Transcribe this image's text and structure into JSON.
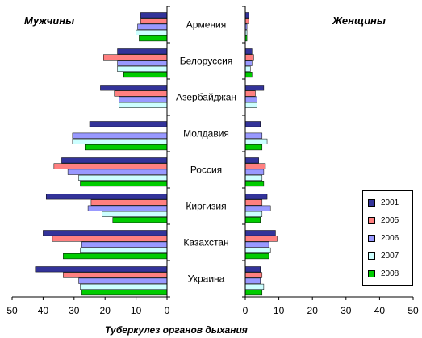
{
  "chart_data": {
    "type": "bar",
    "orientation": "horizontal",
    "xlabel": "Туберкулез органов  дыхания",
    "categories": [
      "Армения",
      "Белоруссия",
      "Азербайджан",
      "Молдавия",
      "Россия",
      "Киргизия",
      "Казахстан",
      "Украина"
    ],
    "series_names": [
      "2001",
      "2005",
      "2006",
      "2007",
      "2008"
    ],
    "colors": {
      "2001": "#333399",
      "2005": "#ff8080",
      "2006": "#9999ff",
      "2007": "#ccffff",
      "2008": "#00cc00"
    },
    "panels": [
      {
        "title": "Мужчины",
        "direction": "reversed",
        "xlim": [
          0,
          50
        ],
        "ticks": [
          "50",
          "40",
          "30",
          "20",
          "10",
          "0"
        ],
        "series": [
          {
            "name": "2001",
            "values": [
              8.5,
              16,
              21.5,
              25,
              34,
              39,
              40,
              42.5
            ]
          },
          {
            "name": "2005",
            "values": [
              8.5,
              20.5,
              17,
              null,
              36.5,
              24.5,
              37,
              33.5
            ]
          },
          {
            "name": "2006",
            "values": [
              9.5,
              16,
              15.5,
              30.5,
              32,
              25.5,
              27.5,
              28.5
            ]
          },
          {
            "name": "2007",
            "values": [
              10,
              16,
              15.5,
              30.5,
              28.5,
              21,
              28,
              28
            ]
          },
          {
            "name": "2008",
            "values": [
              9,
              14,
              null,
              26.5,
              28,
              17.5,
              33.5,
              27.5
            ]
          }
        ]
      },
      {
        "title": "Женщины",
        "direction": "normal",
        "xlim": [
          0,
          50
        ],
        "ticks": [
          "0",
          "10",
          "20",
          "30",
          "40",
          "50"
        ],
        "series": [
          {
            "name": "2001",
            "values": [
              1,
              2,
              5.5,
              4.5,
              4,
              6.5,
              9,
              4.5
            ]
          },
          {
            "name": "2005",
            "values": [
              1,
              2.5,
              3,
              null,
              6,
              5,
              9.5,
              5
            ]
          },
          {
            "name": "2006",
            "values": [
              0.5,
              2,
              3.5,
              5,
              5.5,
              7.5,
              7,
              4.5
            ]
          },
          {
            "name": "2007",
            "values": [
              0.5,
              1.5,
              3.5,
              6.5,
              5,
              5,
              7.5,
              5.5
            ]
          },
          {
            "name": "2008",
            "values": [
              0.5,
              2,
              null,
              5,
              5.5,
              4.5,
              7,
              5
            ]
          }
        ]
      }
    ],
    "legend": {
      "position": "right-bottom",
      "entries": [
        "2001",
        "2005",
        "2006",
        "2007",
        "2008"
      ]
    }
  }
}
